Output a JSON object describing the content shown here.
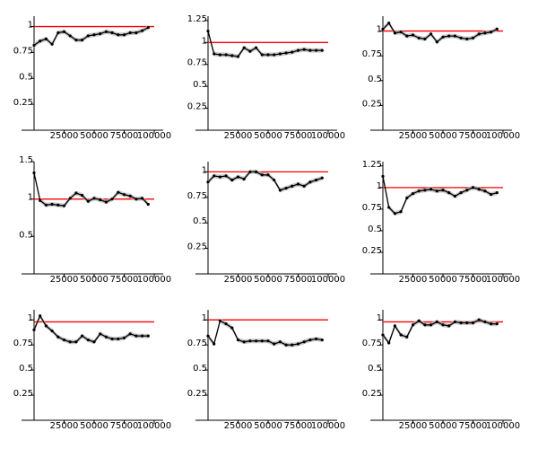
{
  "colors": {
    "reference_line": "#ff0000",
    "series_line": "#000000",
    "band": "#bbbbbb",
    "axis": "#000000"
  },
  "chart_data": [
    {
      "type": "line",
      "x": [
        0,
        5000,
        10000,
        15000,
        20000,
        25000,
        30000,
        35000,
        40000,
        45000,
        50000,
        55000,
        60000,
        65000,
        70000,
        75000,
        80000,
        85000,
        90000,
        95000
      ],
      "series": [
        {
          "values": [
            0.82,
            0.86,
            0.88,
            0.83,
            0.94,
            0.95,
            0.91,
            0.87,
            0.87,
            0.91,
            0.92,
            0.93,
            0.95,
            0.94,
            0.92,
            0.92,
            0.94,
            0.94,
            0.96,
            0.99
          ]
        }
      ],
      "reference_line": 1.0,
      "xlim": [
        0,
        100000
      ],
      "ylim": [
        0,
        1.1
      ],
      "xticks": [
        25000,
        50000,
        75000,
        100000
      ],
      "xtick_labels": [
        "25000",
        "50000",
        "75000",
        "100000"
      ],
      "yticks": [
        0.25,
        0.5,
        0.75,
        1.0
      ],
      "ytick_labels": [
        "0.25",
        "0.5",
        "0.75",
        "1"
      ],
      "grid": false
    },
    {
      "type": "line",
      "x": [
        0,
        5000,
        10000,
        15000,
        20000,
        25000,
        30000,
        35000,
        40000,
        45000,
        50000,
        55000,
        60000,
        65000,
        70000,
        75000,
        80000,
        85000,
        90000,
        95000
      ],
      "series": [
        {
          "values": [
            1.13,
            0.87,
            0.86,
            0.86,
            0.85,
            0.84,
            0.94,
            0.9,
            0.94,
            0.86,
            0.86,
            0.86,
            0.87,
            0.88,
            0.89,
            0.91,
            0.92,
            0.91,
            0.91,
            0.91
          ]
        }
      ],
      "reference_line": 1.0,
      "xlim": [
        0,
        100000
      ],
      "ylim": [
        0,
        1.3
      ],
      "xticks": [
        25000,
        50000,
        75000,
        100000
      ],
      "xtick_labels": [
        "25000",
        "50000",
        "75000",
        "100000"
      ],
      "yticks": [
        0.25,
        0.5,
        0.75,
        1.0,
        1.25
      ],
      "ytick_labels": [
        "0.25",
        "0.5",
        "0.75",
        "1",
        "1.25"
      ],
      "grid": false
    },
    {
      "type": "line",
      "x": [
        0,
        5000,
        10000,
        15000,
        20000,
        25000,
        30000,
        35000,
        40000,
        45000,
        50000,
        55000,
        60000,
        65000,
        70000,
        75000,
        80000,
        85000,
        90000,
        95000
      ],
      "series": [
        {
          "values": [
            1.02,
            1.08,
            0.98,
            0.99,
            0.95,
            0.96,
            0.93,
            0.92,
            0.97,
            0.89,
            0.94,
            0.95,
            0.95,
            0.93,
            0.92,
            0.93,
            0.97,
            0.98,
            0.99,
            1.02
          ]
        }
      ],
      "reference_line": 1.0,
      "xlim": [
        0,
        100000
      ],
      "ylim": [
        0,
        1.15
      ],
      "xticks": [
        25000,
        50000,
        75000,
        100000
      ],
      "xtick_labels": [
        "25000",
        "50000",
        "75000",
        "100000"
      ],
      "yticks": [
        0.25,
        0.5,
        0.75,
        1.0
      ],
      "ytick_labels": [
        "0.25",
        "0.5",
        "0.75",
        "1"
      ],
      "grid": false
    },
    {
      "type": "line",
      "x": [
        0,
        5000,
        10000,
        15000,
        20000,
        25000,
        30000,
        35000,
        40000,
        45000,
        50000,
        55000,
        60000,
        65000,
        70000,
        75000,
        80000,
        85000,
        90000,
        95000
      ],
      "series": [
        {
          "values": [
            1.35,
            0.98,
            0.92,
            0.93,
            0.92,
            0.91,
            1.01,
            1.08,
            1.05,
            0.97,
            1.01,
            0.99,
            0.96,
            1.0,
            1.09,
            1.06,
            1.04,
            1.0,
            1.01,
            0.93
          ]
        }
      ],
      "reference_line": 1.0,
      "xlim": [
        0,
        100000
      ],
      "ylim": [
        0,
        1.5
      ],
      "xticks": [
        25000,
        50000,
        75000,
        100000
      ],
      "xtick_labels": [
        "25000",
        "50000",
        "75000",
        "100000"
      ],
      "yticks": [
        0.5,
        1.0,
        1.5
      ],
      "ytick_labels": [
        "0.5",
        "1",
        "1.5"
      ],
      "grid": false
    },
    {
      "type": "line",
      "x": [
        0,
        5000,
        10000,
        15000,
        20000,
        25000,
        30000,
        35000,
        40000,
        45000,
        50000,
        55000,
        60000,
        65000,
        70000,
        75000,
        80000,
        85000,
        90000,
        95000
      ],
      "series": [
        {
          "values": [
            0.9,
            0.96,
            0.95,
            0.96,
            0.92,
            0.95,
            0.93,
            1.0,
            1.0,
            0.97,
            0.97,
            0.92,
            0.82,
            0.84,
            0.86,
            0.88,
            0.86,
            0.9,
            0.92,
            0.94
          ]
        }
      ],
      "reference_line": 1.0,
      "xlim": [
        0,
        100000
      ],
      "ylim": [
        0,
        1.1
      ],
      "xticks": [
        25000,
        50000,
        75000,
        100000
      ],
      "xtick_labels": [
        "25000",
        "50000",
        "75000",
        "100000"
      ],
      "yticks": [
        0.25,
        0.5,
        0.75,
        1.0
      ],
      "ytick_labels": [
        "0.25",
        "0.5",
        "0.75",
        "1"
      ],
      "grid": false
    },
    {
      "type": "line",
      "x": [
        0,
        5000,
        10000,
        15000,
        20000,
        25000,
        30000,
        35000,
        40000,
        45000,
        50000,
        55000,
        60000,
        65000,
        70000,
        75000,
        80000,
        85000,
        90000,
        95000
      ],
      "series": [
        {
          "values": [
            1.13,
            0.77,
            0.7,
            0.72,
            0.88,
            0.93,
            0.96,
            0.97,
            0.98,
            0.96,
            0.97,
            0.94,
            0.9,
            0.94,
            0.97,
            1.0,
            0.98,
            0.96,
            0.92,
            0.94
          ]
        }
      ],
      "reference_line": 1.0,
      "xlim": [
        0,
        100000
      ],
      "ylim": [
        0,
        1.3
      ],
      "xticks": [
        25000,
        50000,
        75000,
        100000
      ],
      "xtick_labels": [
        "25000",
        "50000",
        "75000",
        "100000"
      ],
      "yticks": [
        0.25,
        0.5,
        0.75,
        1.0,
        1.25
      ],
      "ytick_labels": [
        "0.25",
        "0.5",
        "0.75",
        "1",
        "1.25"
      ],
      "grid": false
    },
    {
      "type": "line",
      "x": [
        0,
        5000,
        10000,
        15000,
        20000,
        25000,
        30000,
        35000,
        40000,
        45000,
        50000,
        55000,
        60000,
        65000,
        70000,
        75000,
        80000,
        85000,
        90000,
        95000
      ],
      "series": [
        {
          "values": [
            0.9,
            1.04,
            0.94,
            0.89,
            0.83,
            0.8,
            0.78,
            0.78,
            0.84,
            0.8,
            0.78,
            0.86,
            0.83,
            0.81,
            0.81,
            0.82,
            0.86,
            0.84,
            0.84,
            0.84
          ]
        }
      ],
      "reference_line": 0.98,
      "xlim": [
        0,
        100000
      ],
      "ylim": [
        0,
        1.1
      ],
      "xticks": [
        25000,
        50000,
        75000,
        100000
      ],
      "xtick_labels": [
        "25000",
        "50000",
        "75000",
        "100000"
      ],
      "yticks": [
        0.25,
        0.5,
        0.75,
        1.0
      ],
      "ytick_labels": [
        "0.25",
        "0.5",
        "0.75",
        "1"
      ],
      "grid": false
    },
    {
      "type": "line",
      "x": [
        0,
        5000,
        10000,
        15000,
        20000,
        25000,
        30000,
        35000,
        40000,
        45000,
        50000,
        55000,
        60000,
        65000,
        70000,
        75000,
        80000,
        85000,
        90000,
        95000
      ],
      "series": [
        {
          "values": [
            0.84,
            0.76,
            0.99,
            0.96,
            0.92,
            0.8,
            0.78,
            0.79,
            0.79,
            0.79,
            0.79,
            0.76,
            0.78,
            0.75,
            0.75,
            0.76,
            0.78,
            0.8,
            0.81,
            0.8
          ]
        }
      ],
      "reference_line": 1.0,
      "xlim": [
        0,
        100000
      ],
      "ylim": [
        0,
        1.1
      ],
      "xticks": [
        25000,
        50000,
        75000,
        100000
      ],
      "xtick_labels": [
        "25000",
        "50000",
        "75000",
        "100000"
      ],
      "yticks": [
        0.25,
        0.5,
        0.75,
        1.0
      ],
      "ytick_labels": [
        "0.25",
        "0.5",
        "0.75",
        "1"
      ],
      "grid": false
    },
    {
      "type": "line",
      "x": [
        0,
        5000,
        10000,
        15000,
        20000,
        25000,
        30000,
        35000,
        40000,
        45000,
        50000,
        55000,
        60000,
        65000,
        70000,
        75000,
        80000,
        85000,
        90000,
        95000
      ],
      "series": [
        {
          "values": [
            0.85,
            0.77,
            0.94,
            0.85,
            0.83,
            0.95,
            0.99,
            0.95,
            0.95,
            0.98,
            0.95,
            0.94,
            0.98,
            0.97,
            0.97,
            0.97,
            1.0,
            0.98,
            0.96,
            0.96
          ]
        }
      ],
      "reference_line": 0.98,
      "xlim": [
        0,
        100000
      ],
      "ylim": [
        0,
        1.1
      ],
      "xticks": [
        25000,
        50000,
        75000,
        100000
      ],
      "xtick_labels": [
        "25000",
        "50000",
        "75000",
        "100000"
      ],
      "yticks": [
        0.25,
        0.5,
        0.75,
        1.0
      ],
      "ytick_labels": [
        "0.25",
        "0.5",
        "0.75",
        "1"
      ],
      "grid": false
    }
  ]
}
